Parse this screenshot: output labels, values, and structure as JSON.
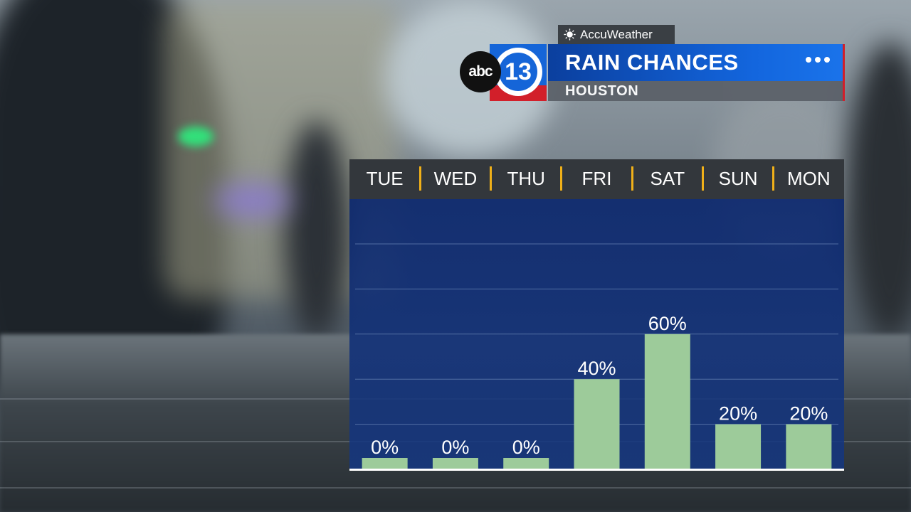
{
  "header": {
    "brand": "AccuWeather",
    "station_logo_text": "abc",
    "station_number": "13",
    "title": "RAIN CHANCES",
    "subtitle": "HOUSTON",
    "menu_icon": "more-dots-icon"
  },
  "colors": {
    "bar": "#9dcb9a",
    "separator": "#f0b019",
    "title_bar": "#1366de",
    "accent_red": "#d21f2a"
  },
  "chart_data": {
    "type": "bar",
    "title": "RAIN CHANCES",
    "subtitle": "HOUSTON",
    "categories": [
      "TUE",
      "WED",
      "THU",
      "FRI",
      "SAT",
      "SUN",
      "MON"
    ],
    "values": [
      0,
      0,
      0,
      40,
      60,
      20,
      20
    ],
    "value_labels": [
      "0%",
      "0%",
      "0%",
      "40%",
      "60%",
      "20%",
      "20%"
    ],
    "ylim": [
      0,
      100
    ],
    "grid": true,
    "legend": "none"
  }
}
